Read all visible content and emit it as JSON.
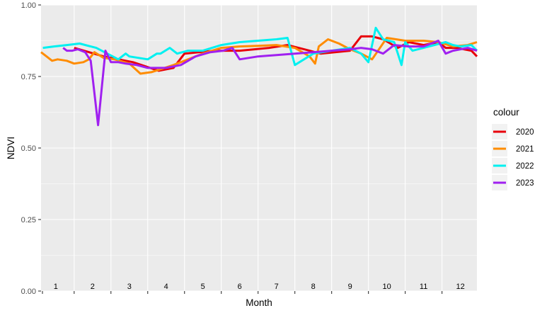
{
  "chart_data": {
    "type": "line",
    "title": "",
    "xlabel": "Month",
    "ylabel": "NDVI",
    "xlim": [
      0.6,
      12.45
    ],
    "ylim": [
      0,
      1
    ],
    "y_ticks": [
      0.0,
      0.25,
      0.5,
      0.75,
      1.0
    ],
    "y_tick_labels": [
      "0.00",
      "0.25",
      "0.50",
      "0.75",
      "1.00"
    ],
    "month_labels": [
      "1",
      "2",
      "3",
      "4",
      "5",
      "6",
      "7",
      "8",
      "9",
      "10",
      "11",
      "12"
    ],
    "grid": true,
    "legend": {
      "title": "colour",
      "placement": "right"
    },
    "series": [
      {
        "name": "2020",
        "color": "#e8000b",
        "x": [
          1.5,
          2.3,
          3.1,
          3.8,
          4.2,
          4.5,
          5.3,
          6.0,
          6.8,
          7.3,
          7.9,
          8.2,
          9.0,
          9.3,
          9.6,
          9.9,
          10.3,
          10.6,
          11.0,
          11.4,
          11.6,
          11.9,
          12.3,
          12.45
        ],
        "y": [
          0.85,
          0.82,
          0.8,
          0.77,
          0.78,
          0.83,
          0.84,
          0.84,
          0.85,
          0.86,
          0.84,
          0.83,
          0.84,
          0.89,
          0.89,
          0.88,
          0.85,
          0.87,
          0.86,
          0.87,
          0.85,
          0.85,
          0.84,
          0.82
        ]
      },
      {
        "name": "2021",
        "color": "#ff8c00",
        "x": [
          0.6,
          0.75,
          0.9,
          1.05,
          1.3,
          1.5,
          1.75,
          1.9,
          2.05,
          2.3,
          2.6,
          3.0,
          3.3,
          3.6,
          4.2,
          5.0,
          5.5,
          6.0,
          6.5,
          7.0,
          7.5,
          7.9,
          8.05,
          8.15,
          8.4,
          8.7,
          9.0,
          9.3,
          9.6,
          10.0,
          10.5,
          11.0,
          11.4,
          11.8,
          12.2,
          12.45
        ],
        "y": [
          0.835,
          0.82,
          0.805,
          0.81,
          0.805,
          0.795,
          0.8,
          0.81,
          0.835,
          0.815,
          0.81,
          0.795,
          0.76,
          0.765,
          0.79,
          0.83,
          0.85,
          0.855,
          0.857,
          0.86,
          0.85,
          0.82,
          0.795,
          0.855,
          0.88,
          0.865,
          0.845,
          0.83,
          0.81,
          0.885,
          0.875,
          0.875,
          0.87,
          0.855,
          0.86,
          0.87
        ]
      },
      {
        "name": "2022",
        "color": "#00f0f0",
        "x": [
          0.65,
          0.95,
          1.3,
          1.65,
          2.1,
          2.7,
          2.9,
          3.0,
          3.5,
          3.75,
          3.85,
          4.1,
          4.3,
          4.6,
          5.0,
          5.5,
          6.0,
          6.5,
          7.0,
          7.3,
          7.5,
          8.0,
          8.5,
          9.0,
          9.3,
          9.5,
          9.7,
          9.9,
          10.2,
          10.4,
          10.5,
          10.7,
          11.0,
          11.6,
          11.8,
          12.0,
          12.3,
          12.45
        ],
        "y": [
          0.85,
          0.855,
          0.86,
          0.865,
          0.85,
          0.81,
          0.83,
          0.82,
          0.81,
          0.83,
          0.83,
          0.85,
          0.83,
          0.84,
          0.84,
          0.86,
          0.87,
          0.875,
          0.88,
          0.885,
          0.79,
          0.83,
          0.84,
          0.85,
          0.83,
          0.8,
          0.92,
          0.88,
          0.87,
          0.79,
          0.87,
          0.84,
          0.85,
          0.87,
          0.86,
          0.855,
          0.86,
          0.84
        ]
      },
      {
        "name": "2023",
        "color": "#a020f0",
        "x": [
          1.2,
          1.3,
          1.45,
          1.6,
          1.8,
          1.95,
          2.15,
          2.35,
          2.5,
          2.7,
          2.9,
          3.2,
          3.5,
          3.8,
          4.0,
          4.4,
          4.8,
          5.2,
          5.55,
          5.8,
          6.0,
          6.5,
          7.0,
          7.5,
          8.0,
          8.5,
          9.0,
          9.3,
          9.6,
          9.9,
          10.2,
          10.6,
          11.0,
          11.4,
          11.6,
          11.8,
          12.2,
          12.45
        ],
        "y": [
          0.85,
          0.84,
          0.84,
          0.845,
          0.835,
          0.805,
          0.58,
          0.84,
          0.8,
          0.8,
          0.795,
          0.79,
          0.78,
          0.78,
          0.78,
          0.79,
          0.82,
          0.835,
          0.84,
          0.85,
          0.81,
          0.82,
          0.825,
          0.83,
          0.835,
          0.84,
          0.845,
          0.85,
          0.845,
          0.83,
          0.86,
          0.855,
          0.855,
          0.875,
          0.83,
          0.84,
          0.85,
          0.84
        ]
      }
    ]
  }
}
